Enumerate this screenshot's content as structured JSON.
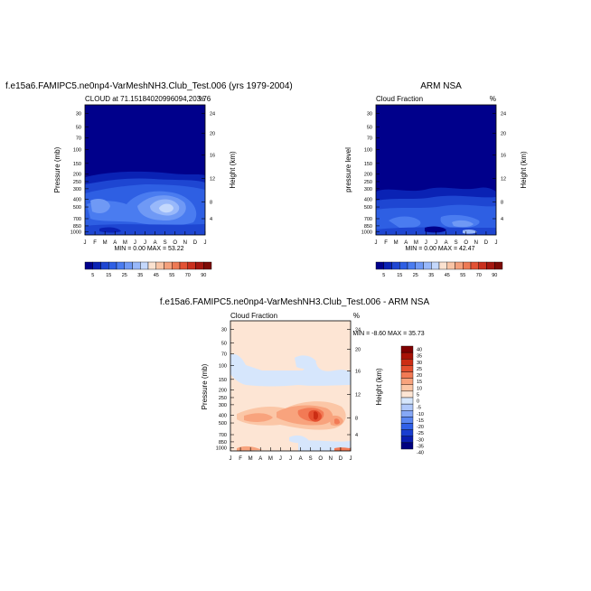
{
  "colors": {
    "model_obs_scale": [
      "#00008b",
      "#0a22b4",
      "#1e46d2",
      "#2e5fe3",
      "#4a7cf0",
      "#6f99f5",
      "#98b8fa",
      "#c4d8fc",
      "#fbe2d0",
      "#f9c4a5",
      "#f4a07c",
      "#ee7a55",
      "#e25234",
      "#c9301e",
      "#a41710",
      "#7d0a06"
    ],
    "diff_scale": [
      "#000080",
      "#0a1eb0",
      "#1a3ed0",
      "#3060e8",
      "#5a86f2",
      "#86a8f6",
      "#b0c8fa",
      "#d6e6fc",
      "#fde5d4",
      "#fbc6a6",
      "#f8a37d",
      "#f27a55",
      "#e44f2f",
      "#cc2d14",
      "#a81206",
      "#800000"
    ]
  },
  "icon_names": [
    "colorbar-swatch"
  ],
  "chart_data": [
    {
      "type": "heatmap",
      "title": "f.e15a6.FAMIPC5.ne0np4-VarMeshNH3.Club_Test.006 (yrs 1979-2004)",
      "subtitle_left": "CLOUD at 71.15184020996094,203.76",
      "subtitle_right": "%",
      "ylabel": "Pressure (mb)",
      "ylabel_right": "Height (km)",
      "x_ticks": [
        "J",
        "F",
        "M",
        "A",
        "M",
        "J",
        "J",
        "A",
        "S",
        "O",
        "N",
        "D",
        "J"
      ],
      "y_ticks": [
        "30",
        "50",
        "70",
        "100",
        "150",
        "200",
        "250",
        "300",
        "400",
        "500",
        "700",
        "850",
        "1000"
      ],
      "y_ticks_right": [
        "24",
        "20",
        "16",
        "12",
        "8",
        "4"
      ],
      "min_max": "MIN =   0.00 MAX =  53.22",
      "min": 0.0,
      "max": 53.22,
      "colorbar": {
        "labels": [
          "5",
          "15",
          "25",
          "35",
          "45",
          "55",
          "70",
          "90"
        ],
        "position": "bottom"
      }
    },
    {
      "type": "heatmap",
      "title": "ARM NSA",
      "subtitle_left": "Cloud Fraction",
      "subtitle_right": "%",
      "ylabel": "pressure level",
      "ylabel_right": "Height (km)",
      "x_ticks": [
        "J",
        "F",
        "M",
        "A",
        "M",
        "J",
        "J",
        "A",
        "S",
        "O",
        "N",
        "D",
        "J"
      ],
      "y_ticks": [
        "30",
        "50",
        "70",
        "100",
        "150",
        "200",
        "250",
        "300",
        "400",
        "500",
        "700",
        "850",
        "1000"
      ],
      "y_ticks_right": [
        "24",
        "20",
        "16",
        "12",
        "8",
        "4"
      ],
      "min_max": "MIN =   0.00 MAX =  42.47",
      "min": 0.0,
      "max": 42.47,
      "colorbar": {
        "labels": [
          "5",
          "15",
          "25",
          "35",
          "45",
          "55",
          "70",
          "90"
        ],
        "position": "bottom"
      }
    },
    {
      "type": "heatmap",
      "title": "f.e15a6.FAMIPC5.ne0np4-VarMeshNH3.Club_Test.006 - ARM NSA",
      "subtitle_left": "Cloud Fraction",
      "subtitle_right": "%",
      "ylabel": "Pressure (mb)",
      "ylabel_right": "Height (km)",
      "x_ticks": [
        "J",
        "F",
        "M",
        "A",
        "M",
        "J",
        "J",
        "A",
        "S",
        "O",
        "N",
        "D",
        "J"
      ],
      "y_ticks": [
        "30",
        "50",
        "70",
        "100",
        "150",
        "200",
        "250",
        "300",
        "400",
        "500",
        "700",
        "850",
        "1000"
      ],
      "y_ticks_right": [
        "24",
        "20",
        "16",
        "12",
        "8",
        "4"
      ],
      "min_max": "MIN =  -8.60 MAX =  35.73",
      "min": -8.6,
      "max": 35.73,
      "colorbar": {
        "labels": [
          "40",
          "35",
          "30",
          "25",
          "20",
          "15",
          "10",
          "5",
          "0",
          "-5",
          "-10",
          "-15",
          "-20",
          "-25",
          "-30",
          "-35",
          "-40"
        ],
        "position": "right"
      }
    }
  ]
}
